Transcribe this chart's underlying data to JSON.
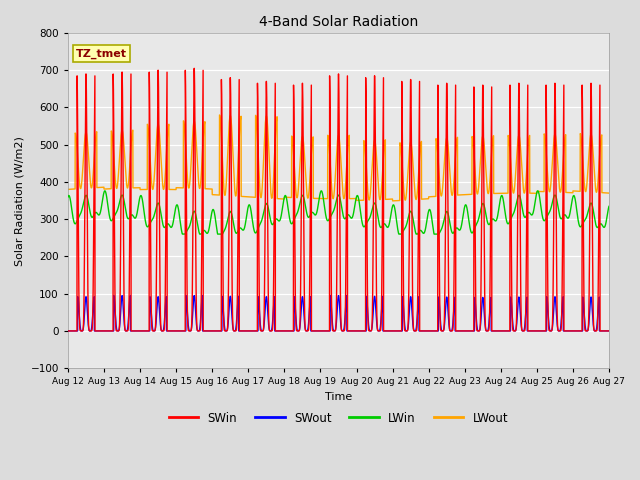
{
  "title": "4-Band Solar Radiation",
  "xlabel": "Time",
  "ylabel": "Solar Radiation (W/m2)",
  "ylim": [
    -100,
    800
  ],
  "yticks": [
    -100,
    0,
    100,
    200,
    300,
    400,
    500,
    600,
    700,
    800
  ],
  "start_day": 12,
  "end_day": 27,
  "num_days": 15,
  "points_per_day": 288,
  "colors": {
    "SWin": "#FF0000",
    "SWout": "#0000FF",
    "LWin": "#00CC00",
    "LWout": "#FFA500"
  },
  "fig_bg": "#DCDCDC",
  "plot_bg": "#E8E8E8",
  "annotation_text": "TZ_tmet",
  "annotation_bg": "#FFFFB0",
  "annotation_border": "#AAAA00",
  "linewidth": 1.0
}
